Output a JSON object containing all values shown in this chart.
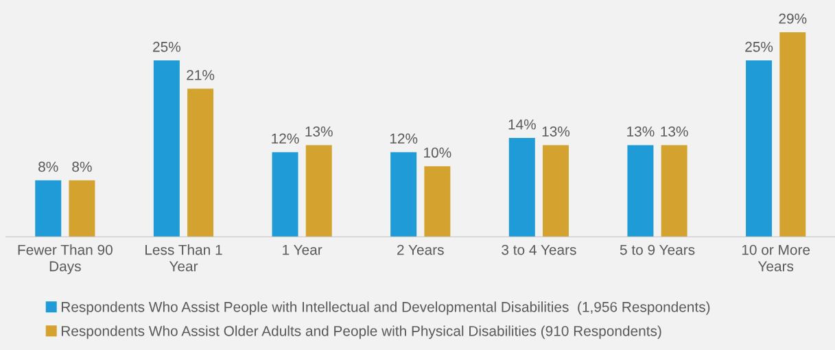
{
  "chart_data": {
    "type": "bar",
    "categories": [
      "Fewer Than 90\nDays",
      "Less Than 1\nYear",
      "1 Year",
      "2 Years",
      "3 to 4 Years",
      "5 to 9 Years",
      "10 or More\nYears"
    ],
    "series": [
      {
        "name": "Respondents Who Assist People with Intellectual and Developmental Disabilities  (1,956 Respondents)",
        "color": "#1f9bd7",
        "values": [
          8,
          25,
          12,
          12,
          14,
          13,
          25
        ],
        "value_labels": [
          "8%",
          "25%",
          "12%",
          "12%",
          "14%",
          "13%",
          "25%"
        ]
      },
      {
        "name": "Respondents Who Assist Older Adults and People with Physical Disabilities (910 Respondents)",
        "color": "#d4a32f",
        "values": [
          8,
          21,
          13,
          10,
          13,
          13,
          29
        ],
        "value_labels": [
          "8%",
          "21%",
          "13%",
          "10%",
          "13%",
          "13%",
          "29%"
        ]
      }
    ],
    "grid": false,
    "legend": "bottom"
  }
}
